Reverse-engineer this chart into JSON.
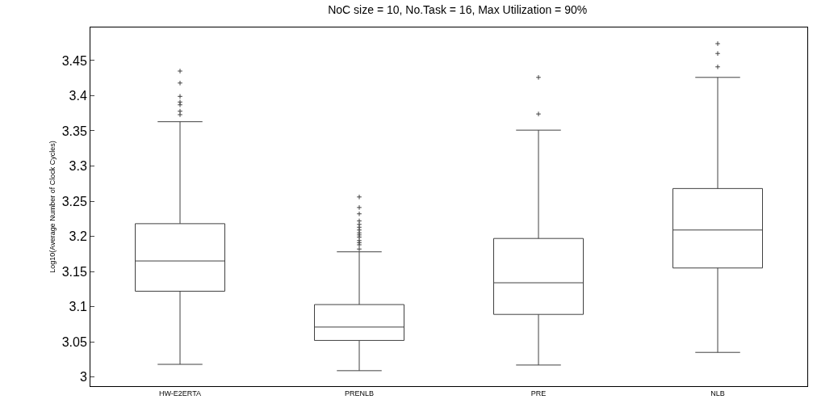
{
  "chart_data": {
    "type": "box",
    "title": "NoC size = 10, No.Task = 16, Max Utilization = 90%",
    "ylabel": "Log10(Average Number of Clock Cycles)",
    "categories": [
      "HW-E2ERTA",
      "PRENLB",
      "PRE",
      "NLB"
    ],
    "boxes": [
      {
        "low": 3.018,
        "q1": 3.122,
        "median": 3.165,
        "q3": 3.218,
        "high": 3.363,
        "outliers": [
          3.435,
          3.418,
          3.399,
          3.391,
          3.387,
          3.378,
          3.373
        ]
      },
      {
        "low": 3.009,
        "q1": 3.052,
        "median": 3.071,
        "q3": 3.103,
        "high": 3.178,
        "outliers": [
          3.256,
          3.241,
          3.232,
          3.222,
          3.217,
          3.213,
          3.209,
          3.205,
          3.202,
          3.199,
          3.194,
          3.191,
          3.188,
          3.182
        ]
      },
      {
        "low": 3.017,
        "q1": 3.089,
        "median": 3.134,
        "q3": 3.197,
        "high": 3.351,
        "outliers": [
          3.426,
          3.374
        ]
      },
      {
        "low": 3.035,
        "q1": 3.155,
        "median": 3.209,
        "q3": 3.268,
        "high": 3.426,
        "outliers": [
          3.474,
          3.46,
          3.441
        ]
      }
    ],
    "color": "#404040",
    "ylim": [
      2.987,
      3.497
    ],
    "yticks": [
      3,
      3.05,
      3.1,
      3.15,
      3.2,
      3.25,
      3.3,
      3.35,
      3.4,
      3.45
    ],
    "marker": "cross"
  }
}
